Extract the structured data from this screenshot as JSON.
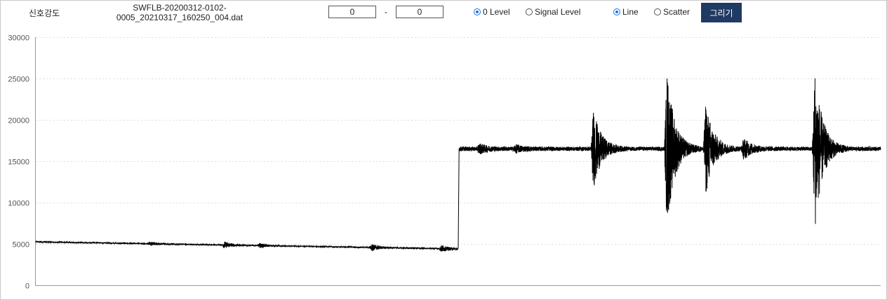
{
  "header": {
    "label": "신호강도",
    "filename_line1": "SWFLB-20200312-0102-",
    "filename_line2": "0005_20210317_160250_004.dat",
    "range_from": "0",
    "range_separator": "-",
    "range_to": "0",
    "level_options": [
      {
        "label": "0 Level",
        "selected": true
      },
      {
        "label": "Signal Level",
        "selected": false
      }
    ],
    "style_options": [
      {
        "label": "Line",
        "selected": true
      },
      {
        "label": "Scatter",
        "selected": false
      }
    ],
    "draw_button": "그리기"
  },
  "colors": {
    "line": "#000000",
    "grid": "#dddddd",
    "button": "#1f3a63",
    "radio": "#1a73e8"
  },
  "chart_data": {
    "type": "line",
    "title": "",
    "xlabel": "",
    "ylabel": "",
    "ylim": [
      0,
      30000
    ],
    "yticks": [
      "0",
      "5000",
      "10000",
      "15000",
      "20000",
      "25000",
      "30000"
    ],
    "xlim": [
      0,
      1000
    ],
    "grid": "horizontal dotted",
    "legend": "none",
    "series": [
      {
        "baseline": [
          [
            0,
            5250
          ],
          [
            500,
            4400
          ],
          [
            501,
            16500
          ],
          [
            1000,
            16500
          ]
        ],
        "noise_segments": [
          [
            0,
            500,
            60
          ],
          [
            500,
            1000,
            250
          ]
        ],
        "bursts": [
          {
            "x": 135,
            "amp": 200
          },
          {
            "x": 223,
            "amp": 380
          },
          {
            "x": 265,
            "amp": 250
          },
          {
            "x": 398,
            "amp": 400
          },
          {
            "x": 480,
            "amp": 400
          },
          {
            "x": 525,
            "amp": 500
          },
          {
            "x": 568,
            "amp": 350
          },
          {
            "x": 660,
            "amp": 4700
          },
          {
            "x": 747,
            "amp": 9600
          },
          {
            "x": 793,
            "amp": 5500
          },
          {
            "x": 838,
            "amp": 1200
          },
          {
            "x": 922,
            "amp": 9800
          }
        ]
      }
    ]
  }
}
